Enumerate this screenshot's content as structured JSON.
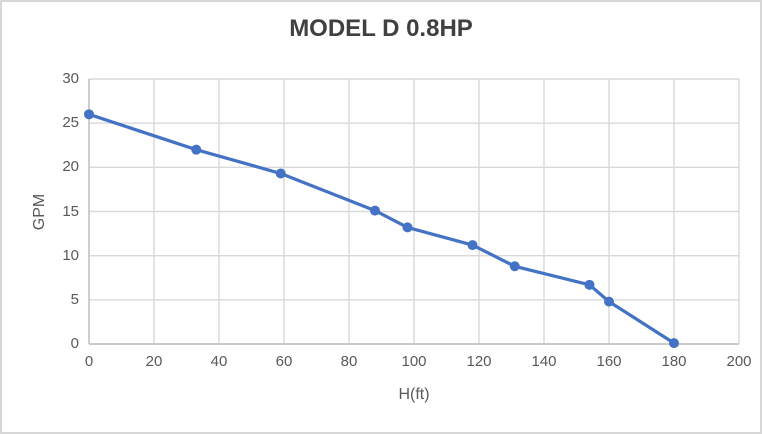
{
  "chart_data": {
    "type": "line",
    "title": "MODEL D 0.8HP",
    "xlabel": "H(ft)",
    "ylabel": "GPM",
    "series": [
      {
        "name": "MODEL D 0.8HP",
        "x": [
          0,
          33,
          59,
          88,
          98,
          118,
          131,
          154,
          160,
          180
        ],
        "y": [
          26,
          22,
          19.3,
          15.1,
          13.2,
          11.2,
          8.8,
          6.7,
          4.8,
          0.1
        ]
      }
    ],
    "xlim": [
      0,
      200
    ],
    "ylim": [
      0,
      30
    ],
    "x_ticks": [
      0,
      20,
      40,
      60,
      80,
      100,
      120,
      140,
      160,
      180,
      200
    ],
    "y_ticks": [
      0,
      5,
      10,
      15,
      20,
      25,
      30
    ],
    "grid": true,
    "legend_position": "none",
    "marker": "circle"
  },
  "colors": {
    "series": "#4472C4",
    "gridline": "#D9D9D9",
    "axis_line": "#BFBFBF",
    "title_text": "#404040",
    "tick_text": "#595959",
    "axis_title_text": "#595959",
    "background": "#FFFFFF",
    "chart_border": "#D7D7D7"
  }
}
